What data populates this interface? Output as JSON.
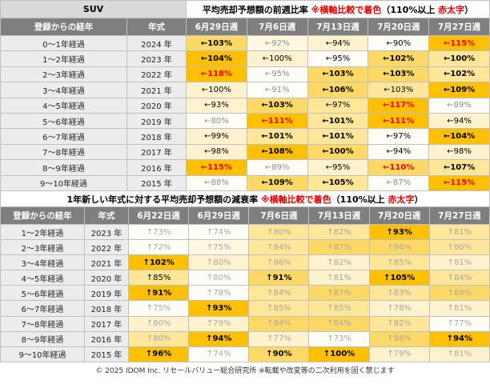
{
  "table1": {
    "label": "SUV",
    "title_parts": [
      {
        "text": "平均売却予想額の前週比率 ",
        "fg": "#000000"
      },
      {
        "text": "※横軸比較で着色",
        "fg": "#e00000"
      },
      {
        "text": "（110%以上 ",
        "fg": "#000000"
      },
      {
        "text": "赤太字",
        "fg": "#e00000"
      },
      {
        "text": "）",
        "fg": "#000000"
      }
    ],
    "headers": [
      "登録からの経年",
      "年式",
      "6月29日週",
      "7月6日週",
      "7月13日週",
      "7月20日週",
      "7月27日週"
    ],
    "rows": [
      {
        "age": "0〜1年経過",
        "year": "2024 年",
        "cells": [
          {
            "text": "←103%",
            "bg": "#ffd966",
            "bold": true
          },
          {
            "text": "←92%",
            "bg": "#fff8e1",
            "fg": "#8c8c8c"
          },
          {
            "text": "←94%",
            "bg": "#fff2cc"
          },
          {
            "text": "←90%",
            "bg": "#fffdf5"
          },
          {
            "text": "←115%",
            "bg": "#ffc000",
            "fg": "#ff0000",
            "bold": true
          }
        ]
      },
      {
        "age": "1〜2年経過",
        "year": "2023 年",
        "cells": [
          {
            "text": "←104%",
            "bg": "#ffc000",
            "bold": true
          },
          {
            "text": "←100%",
            "bg": "#fff2cc"
          },
          {
            "text": "←95%",
            "bg": "#fffdf5"
          },
          {
            "text": "←102%",
            "bg": "#ffd966",
            "bold": true
          },
          {
            "text": "←100%",
            "bg": "#ffe699",
            "bold": true
          }
        ]
      },
      {
        "age": "2〜3年経過",
        "year": "2022 年",
        "cells": [
          {
            "text": "←118%",
            "bg": "#ffc000",
            "fg": "#ff0000",
            "bold": true
          },
          {
            "text": "←95%",
            "bg": "#fffdf5",
            "fg": "#8c8c8c"
          },
          {
            "text": "←103%",
            "bg": "#ffd966",
            "bold": true
          },
          {
            "text": "←103%",
            "bg": "#ffd966",
            "bold": true
          },
          {
            "text": "←102%",
            "bg": "#ffe699",
            "bold": true
          }
        ]
      },
      {
        "age": "3〜4年経過",
        "year": "2021 年",
        "cells": [
          {
            "text": "←100%",
            "bg": "#fff2cc"
          },
          {
            "text": "←91%",
            "bg": "#fffdf5",
            "fg": "#8c8c8c"
          },
          {
            "text": "←106%",
            "bg": "#ffd966",
            "bold": true
          },
          {
            "text": "←103%",
            "bg": "#ffe699"
          },
          {
            "text": "←109%",
            "bg": "#ffc000",
            "bold": true
          }
        ]
      },
      {
        "age": "4〜5年経過",
        "year": "2020 年",
        "cells": [
          {
            "text": "←93%",
            "bg": "#fff2cc"
          },
          {
            "text": "←103%",
            "bg": "#ffd966",
            "bold": true
          },
          {
            "text": "←97%",
            "bg": "#ffe699"
          },
          {
            "text": "←117%",
            "bg": "#ffc000",
            "fg": "#ff0000",
            "bold": true
          },
          {
            "text": "←89%",
            "bg": "#fffdf5",
            "fg": "#8c8c8c"
          }
        ]
      },
      {
        "age": "5〜6年経過",
        "year": "2019 年",
        "cells": [
          {
            "text": "←80%",
            "bg": "#fffdf5",
            "fg": "#8c8c8c"
          },
          {
            "text": "←111%",
            "bg": "#ffc000",
            "fg": "#ff0000",
            "bold": true
          },
          {
            "text": "←101%",
            "bg": "#ffe699",
            "bold": true
          },
          {
            "text": "←111%",
            "bg": "#ffc000",
            "fg": "#ff0000",
            "bold": true
          },
          {
            "text": "←94%",
            "bg": "#fff2cc"
          }
        ]
      },
      {
        "age": "6〜7年経過",
        "year": "2018 年",
        "cells": [
          {
            "text": "←99%",
            "bg": "#fff2cc"
          },
          {
            "text": "←101%",
            "bg": "#ffe699",
            "bold": true
          },
          {
            "text": "←101%",
            "bg": "#ffe699",
            "bold": true
          },
          {
            "text": "←97%",
            "bg": "#fffdf5"
          },
          {
            "text": "←104%",
            "bg": "#ffc000",
            "bold": true
          }
        ]
      },
      {
        "age": "7〜8年経過",
        "year": "2017 年",
        "cells": [
          {
            "text": "←98%",
            "bg": "#fff2cc"
          },
          {
            "text": "←108%",
            "bg": "#ffc000",
            "bold": true
          },
          {
            "text": "←100%",
            "bg": "#ffd966",
            "bold": true
          },
          {
            "text": "←94%",
            "bg": "#fffdf5"
          },
          {
            "text": "←98%",
            "bg": "#fff2cc"
          }
        ]
      },
      {
        "age": "8〜9年経過",
        "year": "2016 年",
        "cells": [
          {
            "text": "←115%",
            "bg": "#ffc000",
            "fg": "#ff0000",
            "bold": true
          },
          {
            "text": "←89%",
            "bg": "#fffdf5",
            "fg": "#8c8c8c"
          },
          {
            "text": "←95%",
            "bg": "#fff2cc"
          },
          {
            "text": "←110%",
            "bg": "#ffd966",
            "fg": "#ff0000",
            "bold": true
          },
          {
            "text": "←107%",
            "bg": "#ffe699",
            "bold": true
          }
        ]
      },
      {
        "age": "9〜10年経過",
        "year": "2015 年",
        "cells": [
          {
            "text": "←88%",
            "bg": "#fffdf5",
            "fg": "#8c8c8c"
          },
          {
            "text": "←109%",
            "bg": "#ffd966",
            "bold": true
          },
          {
            "text": "←105%",
            "bg": "#ffe699",
            "bold": true
          },
          {
            "text": "←87%",
            "bg": "#fffdf5",
            "fg": "#8c8c8c"
          },
          {
            "text": "←115%",
            "bg": "#ffc000",
            "fg": "#ff0000",
            "bold": true
          }
        ]
      }
    ]
  },
  "table2": {
    "title_parts": [
      {
        "text": "1年新しい年式に対する平均売却予想額の減衰率 ",
        "fg": "#000000"
      },
      {
        "text": "※横軸比較で着色",
        "fg": "#e00000"
      },
      {
        "text": "（110%以上 ",
        "fg": "#000000"
      },
      {
        "text": "赤太字",
        "fg": "#e00000"
      },
      {
        "text": "）",
        "fg": "#000000"
      }
    ],
    "headers": [
      "登録からの経年",
      "年式",
      "6月22日週",
      "6月29日週",
      "7月6日週",
      "7月13日週",
      "7月20日週",
      "7月27日週"
    ],
    "rows": [
      {
        "age": "1〜2年経過",
        "year": "2023 年",
        "cells": [
          {
            "text": "↑73%",
            "bg": "#fffdf5",
            "fg": "#a6a6a6"
          },
          {
            "text": "↑74%",
            "bg": "#fffdf5",
            "fg": "#a6a6a6"
          },
          {
            "text": "↑80%",
            "bg": "#ffe699",
            "fg": "#a6a6a6"
          },
          {
            "text": "↑82%",
            "bg": "#ffe699",
            "fg": "#a6a6a6"
          },
          {
            "text": "↑93%",
            "bg": "#ffc000",
            "bold": true
          },
          {
            "text": "↑81%",
            "bg": "#ffe699",
            "fg": "#a6a6a6"
          }
        ]
      },
      {
        "age": "2〜3年経過",
        "year": "2022 年",
        "cells": [
          {
            "text": "↑72%",
            "bg": "#fffdf5",
            "fg": "#a6a6a6"
          },
          {
            "text": "↑75%",
            "bg": "#fff8e1",
            "fg": "#a6a6a6"
          },
          {
            "text": "↑84%",
            "bg": "#ffe699",
            "fg": "#a6a6a6"
          },
          {
            "text": "↑87%",
            "bg": "#ffd966",
            "fg": "#a6a6a6"
          },
          {
            "text": "↑86%",
            "bg": "#ffd966",
            "fg": "#a6a6a6"
          },
          {
            "text": "↑80%",
            "bg": "#ffe699",
            "fg": "#a6a6a6"
          }
        ]
      },
      {
        "age": "3〜4年経過",
        "year": "2021 年",
        "cells": [
          {
            "text": "↑102%",
            "bg": "#ffc000",
            "bold": true
          },
          {
            "text": "↑80%",
            "bg": "#fff2cc",
            "fg": "#a6a6a6"
          },
          {
            "text": "↑86%",
            "bg": "#ffe699",
            "fg": "#a6a6a6"
          },
          {
            "text": "↑82%",
            "bg": "#fff2cc",
            "fg": "#a6a6a6"
          },
          {
            "text": "↑85%",
            "bg": "#ffe699",
            "fg": "#a6a6a6"
          },
          {
            "text": "↑81%",
            "bg": "#fff2cc",
            "fg": "#a6a6a6"
          }
        ]
      },
      {
        "age": "4〜5年経過",
        "year": "2020 年",
        "cells": [
          {
            "text": "↑85%",
            "bg": "#ffe699"
          },
          {
            "text": "↑80%",
            "bg": "#fffdf5",
            "fg": "#a6a6a6"
          },
          {
            "text": "↑91%",
            "bg": "#ffd966",
            "bold": true
          },
          {
            "text": "↑81%",
            "bg": "#fff2cc",
            "fg": "#a6a6a6"
          },
          {
            "text": "↑105%",
            "bg": "#ffc000",
            "bold": true
          },
          {
            "text": "↑84%",
            "bg": "#ffe699",
            "fg": "#a6a6a6"
          }
        ]
      },
      {
        "age": "5〜6年経過",
        "year": "2019 年",
        "cells": [
          {
            "text": "↑91%",
            "bg": "#ffc000",
            "bold": true
          },
          {
            "text": "↑78%",
            "bg": "#fffdf5",
            "fg": "#a6a6a6"
          },
          {
            "text": "↑84%",
            "bg": "#ffe699",
            "fg": "#a6a6a6"
          },
          {
            "text": "↑87%",
            "bg": "#ffd966",
            "fg": "#a6a6a6"
          },
          {
            "text": "↑83%",
            "bg": "#ffe699",
            "fg": "#a6a6a6"
          },
          {
            "text": "↑89%",
            "bg": "#ffd966",
            "fg": "#a6a6a6"
          }
        ]
      },
      {
        "age": "6〜7年経過",
        "year": "2018 年",
        "cells": [
          {
            "text": "↑75%",
            "bg": "#fffdf5",
            "fg": "#a6a6a6"
          },
          {
            "text": "↑93%",
            "bg": "#ffc000",
            "bold": true
          },
          {
            "text": "↑85%",
            "bg": "#ffe699",
            "fg": "#a6a6a6"
          },
          {
            "text": "↑85%",
            "bg": "#ffe699",
            "fg": "#a6a6a6"
          },
          {
            "text": "↑78%",
            "bg": "#fff2cc",
            "fg": "#a6a6a6"
          },
          {
            "text": "↑81%",
            "bg": "#fff2cc",
            "fg": "#a6a6a6"
          }
        ]
      },
      {
        "age": "7〜8年経過",
        "year": "2017 年",
        "cells": [
          {
            "text": "↑80%",
            "bg": "#fff2cc",
            "fg": "#a6a6a6"
          },
          {
            "text": "↑79%",
            "bg": "#fff2cc",
            "fg": "#a6a6a6"
          },
          {
            "text": "↑84%",
            "bg": "#ffd966",
            "fg": "#a6a6a6"
          },
          {
            "text": "↑84%",
            "bg": "#ffd966",
            "fg": "#a6a6a6"
          },
          {
            "text": "↑82%",
            "bg": "#ffe699",
            "fg": "#a6a6a6"
          },
          {
            "text": "↑77%",
            "bg": "#fffdf5",
            "fg": "#a6a6a6"
          }
        ]
      },
      {
        "age": "8〜9年経過",
        "year": "2016 年",
        "cells": [
          {
            "text": "↑80%",
            "bg": "#ffe699",
            "fg": "#a6a6a6"
          },
          {
            "text": "↑94%",
            "bg": "#ffc000",
            "bold": true
          },
          {
            "text": "↑77%",
            "bg": "#fff2cc",
            "fg": "#a6a6a6"
          },
          {
            "text": "↑73%",
            "bg": "#fffdf5",
            "fg": "#a6a6a6"
          },
          {
            "text": "↑86%",
            "bg": "#ffd966",
            "fg": "#a6a6a6"
          },
          {
            "text": "↑94%",
            "bg": "#ffc000",
            "bold": true
          }
        ]
      },
      {
        "age": "9〜10年経過",
        "year": "2015 年",
        "cells": [
          {
            "text": "↑96%",
            "bg": "#ffc000",
            "bold": true
          },
          {
            "text": "↑74%",
            "bg": "#fffdf5",
            "fg": "#a6a6a6"
          },
          {
            "text": "↑90%",
            "bg": "#ffd966",
            "bold": true
          },
          {
            "text": "↑100%",
            "bg": "#ffc000",
            "bold": true
          },
          {
            "text": "↑79%",
            "bg": "#fff2cc",
            "fg": "#a6a6a6"
          },
          {
            "text": "↑81%",
            "bg": "#fff2cc",
            "fg": "#a6a6a6"
          }
        ]
      }
    ]
  },
  "footer": "© 2025 IDOM Inc. リセールバリュー総合研究所 ※転載や改変等の二次利用を固く禁じます"
}
